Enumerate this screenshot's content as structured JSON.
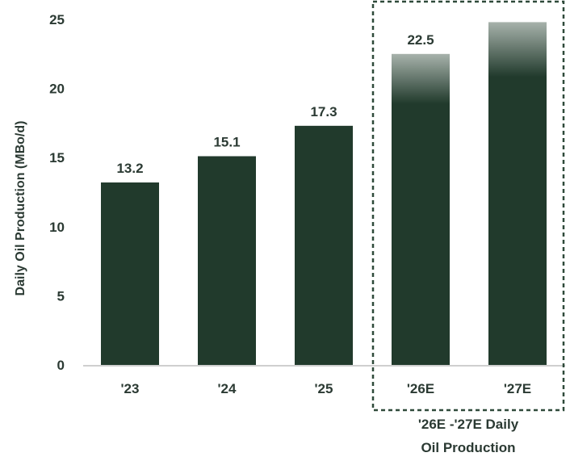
{
  "chart_data": {
    "type": "bar",
    "ylabel": "Daily Oil Production (MBo/d)",
    "xlabel": "",
    "ylim": [
      0,
      25
    ],
    "yticks": [
      0,
      5,
      10,
      15,
      20,
      25
    ],
    "categories": [
      "'23",
      "'24",
      "'25",
      "'26E",
      "'27E"
    ],
    "values": [
      13.2,
      15.1,
      17.3,
      22.5,
      24.8
    ],
    "data_labels": [
      "13.2",
      "15.1",
      "17.3",
      "22.5",
      ""
    ],
    "estimated": [
      false,
      false,
      false,
      true,
      true
    ],
    "grid": false,
    "legend": "none",
    "bar_color": "#213a2c",
    "estimate_fade_color": "#a7b2ab",
    "annotation": {
      "line1": "'26E -'27E Daily",
      "line2": "Oil Production",
      "style": "dashed box around '26E and '27E"
    }
  }
}
